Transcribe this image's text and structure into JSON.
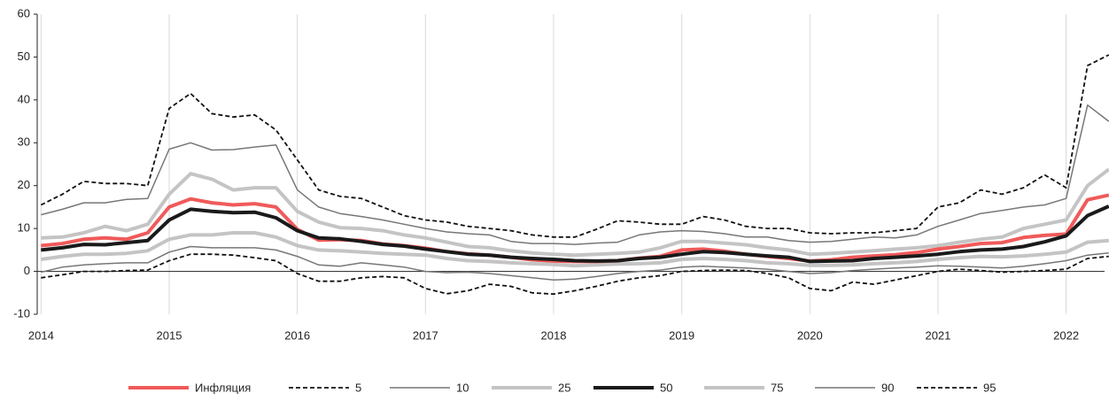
{
  "chart_data": {
    "type": "line",
    "x": [
      2014.0,
      2014.167,
      2014.333,
      2014.5,
      2014.667,
      2014.833,
      2015.0,
      2015.167,
      2015.333,
      2015.5,
      2015.667,
      2015.833,
      2016.0,
      2016.167,
      2016.333,
      2016.5,
      2016.667,
      2016.833,
      2017.0,
      2017.167,
      2017.333,
      2017.5,
      2017.667,
      2017.833,
      2018.0,
      2018.167,
      2018.333,
      2018.5,
      2018.667,
      2018.833,
      2019.0,
      2019.167,
      2019.333,
      2019.5,
      2019.667,
      2019.833,
      2020.0,
      2020.167,
      2020.333,
      2020.5,
      2020.667,
      2020.833,
      2021.0,
      2021.167,
      2021.333,
      2021.5,
      2021.667,
      2021.833,
      2022.0,
      2022.167,
      2022.333
    ],
    "series": [
      {
        "name": "Инфляция",
        "color": "#f05a5a",
        "dashed": false,
        "values": [
          6,
          6.5,
          7.5,
          7.8,
          7.5,
          9,
          15,
          16.9,
          16,
          15.5,
          15.8,
          15,
          9.8,
          7.3,
          7.4,
          7.2,
          6.4,
          6,
          5.4,
          4.6,
          4.1,
          3.8,
          3.3,
          2.7,
          2.4,
          2.3,
          2.3,
          2.5,
          3.1,
          3.5,
          5,
          5.2,
          4.7,
          4,
          3.5,
          3,
          2.4,
          2.7,
          3.3,
          3.6,
          3.9,
          4.4,
          5.2,
          5.8,
          6.5,
          6.7,
          7.9,
          8.4,
          8.7,
          16.7,
          17.8
        ]
      },
      {
        "name": "5",
        "color": "#111111",
        "dashed": true,
        "values": [
          -1.5,
          -0.8,
          0,
          0,
          0.2,
          0.3,
          2.5,
          4,
          4,
          3.8,
          3.2,
          2.5,
          -0.5,
          -2.3,
          -2.3,
          -1.5,
          -1.2,
          -1.5,
          -4,
          -5.2,
          -4.5,
          -3,
          -3.5,
          -5,
          -5.3,
          -4.5,
          -3.5,
          -2.3,
          -1.5,
          -1,
          0,
          0.2,
          0.3,
          0.2,
          -0.5,
          -1.5,
          -4,
          -4.5,
          -2.5,
          -3,
          -2,
          -1,
          0,
          0.5,
          0.2,
          -0.2,
          0,
          0.2,
          0.5,
          3,
          3.5
        ]
      },
      {
        "name": "10",
        "color": "#777777",
        "dashed": false,
        "values": [
          -0.2,
          1,
          1.5,
          1.8,
          2,
          2,
          4.5,
          5.8,
          5.5,
          5.5,
          5.5,
          5,
          3.5,
          1.5,
          1.2,
          2,
          1.5,
          1,
          0,
          -0.3,
          -0.2,
          -0.5,
          -1,
          -1.5,
          -2,
          -1.8,
          -1.2,
          -0.5,
          0,
          0.3,
          1,
          1.2,
          1,
          0.8,
          0.5,
          0,
          -0.5,
          -0.3,
          0.2,
          0.5,
          0.8,
          1,
          1.3,
          1.2,
          1,
          0.8,
          1.2,
          1.8,
          2.5,
          3.8,
          4.3
        ]
      },
      {
        "name": "25",
        "color": "#c4c4c4",
        "dashed": false,
        "values": [
          2.8,
          3.5,
          4,
          4,
          4.2,
          4.8,
          7.5,
          8.5,
          8.5,
          9,
          9,
          8,
          6,
          5,
          4.8,
          4.5,
          4.2,
          4,
          3.8,
          3,
          2.5,
          2.3,
          2,
          1.8,
          1.6,
          1.3,
          1.5,
          1.7,
          1.8,
          2,
          2.8,
          3,
          2.8,
          2.5,
          2,
          1.8,
          1.4,
          1.4,
          1.5,
          1.8,
          2,
          2.3,
          2.8,
          3.2,
          3.5,
          3.4,
          3.6,
          4,
          4.5,
          6.8,
          7.2
        ]
      },
      {
        "name": "50",
        "color": "#1a1a1a",
        "dashed": false,
        "values": [
          5,
          5.5,
          6.3,
          6.2,
          6.7,
          7.2,
          12,
          14.5,
          14,
          13.7,
          13.8,
          12.5,
          9.5,
          7.8,
          7.6,
          7,
          6.3,
          5.9,
          5.2,
          4.6,
          4,
          3.8,
          3.3,
          3,
          2.8,
          2.5,
          2.4,
          2.5,
          3,
          3.3,
          4,
          4.6,
          4.4,
          4,
          3.6,
          3.3,
          2.3,
          2.4,
          2.5,
          3,
          3.3,
          3.6,
          4,
          4.6,
          5,
          5.2,
          5.8,
          6.9,
          8.3,
          13,
          15.2
        ]
      },
      {
        "name": "75",
        "color": "#c4c4c4",
        "dashed": false,
        "values": [
          7.8,
          8,
          9,
          10.5,
          9.5,
          11,
          18,
          22.8,
          21.5,
          19,
          19.5,
          19.5,
          14,
          11.5,
          10.2,
          10,
          9.5,
          8.5,
          7.8,
          6.8,
          5.8,
          5.5,
          4.8,
          4.3,
          4,
          3.8,
          4,
          4.2,
          4.5,
          5.5,
          7,
          7,
          6.6,
          6.2,
          5.5,
          5,
          4,
          4.2,
          4.5,
          4.8,
          5.2,
          5.5,
          6,
          6.8,
          7.5,
          8,
          10,
          11,
          12,
          20,
          23.8
        ]
      },
      {
        "name": "90",
        "color": "#777777",
        "dashed": false,
        "values": [
          13.2,
          14.5,
          16,
          16,
          16.8,
          17,
          28.5,
          30,
          28.3,
          28.4,
          29,
          29.5,
          19,
          15,
          13.5,
          12.8,
          12,
          11,
          10,
          9.2,
          8.8,
          8.5,
          7,
          6.5,
          6.5,
          6.3,
          6.6,
          6.8,
          8.5,
          9.2,
          9.5,
          9.3,
          8.8,
          8,
          8,
          7.2,
          6.8,
          7,
          7.5,
          8,
          7.8,
          8.5,
          10.5,
          12,
          13.5,
          14.2,
          15,
          15.5,
          17,
          38.8,
          35
        ]
      },
      {
        "name": "95",
        "color": "#111111",
        "dashed": true,
        "values": [
          15.5,
          18,
          21,
          20.5,
          20.5,
          20,
          38,
          41.5,
          36.8,
          36,
          36.5,
          33,
          26,
          19,
          17.5,
          17,
          15,
          13,
          12,
          11.5,
          10.5,
          10,
          9.5,
          8.5,
          8,
          8,
          9.8,
          11.8,
          11.5,
          11,
          11,
          12.8,
          12,
          10.5,
          10,
          10,
          9,
          8.8,
          9,
          9,
          9.5,
          10,
          15,
          16,
          19,
          18,
          19.5,
          22.5,
          19.5,
          48,
          50.5
        ]
      }
    ],
    "xlim": [
      2013.97,
      2022.3
    ],
    "xticks": [
      2014,
      2015,
      2016,
      2017,
      2018,
      2019,
      2020,
      2021,
      2022
    ],
    "ylim": [
      -10,
      60
    ],
    "yticks": [
      -10,
      0,
      10,
      20,
      30,
      40,
      50,
      60
    ],
    "grid": true,
    "legend": "bottom"
  }
}
